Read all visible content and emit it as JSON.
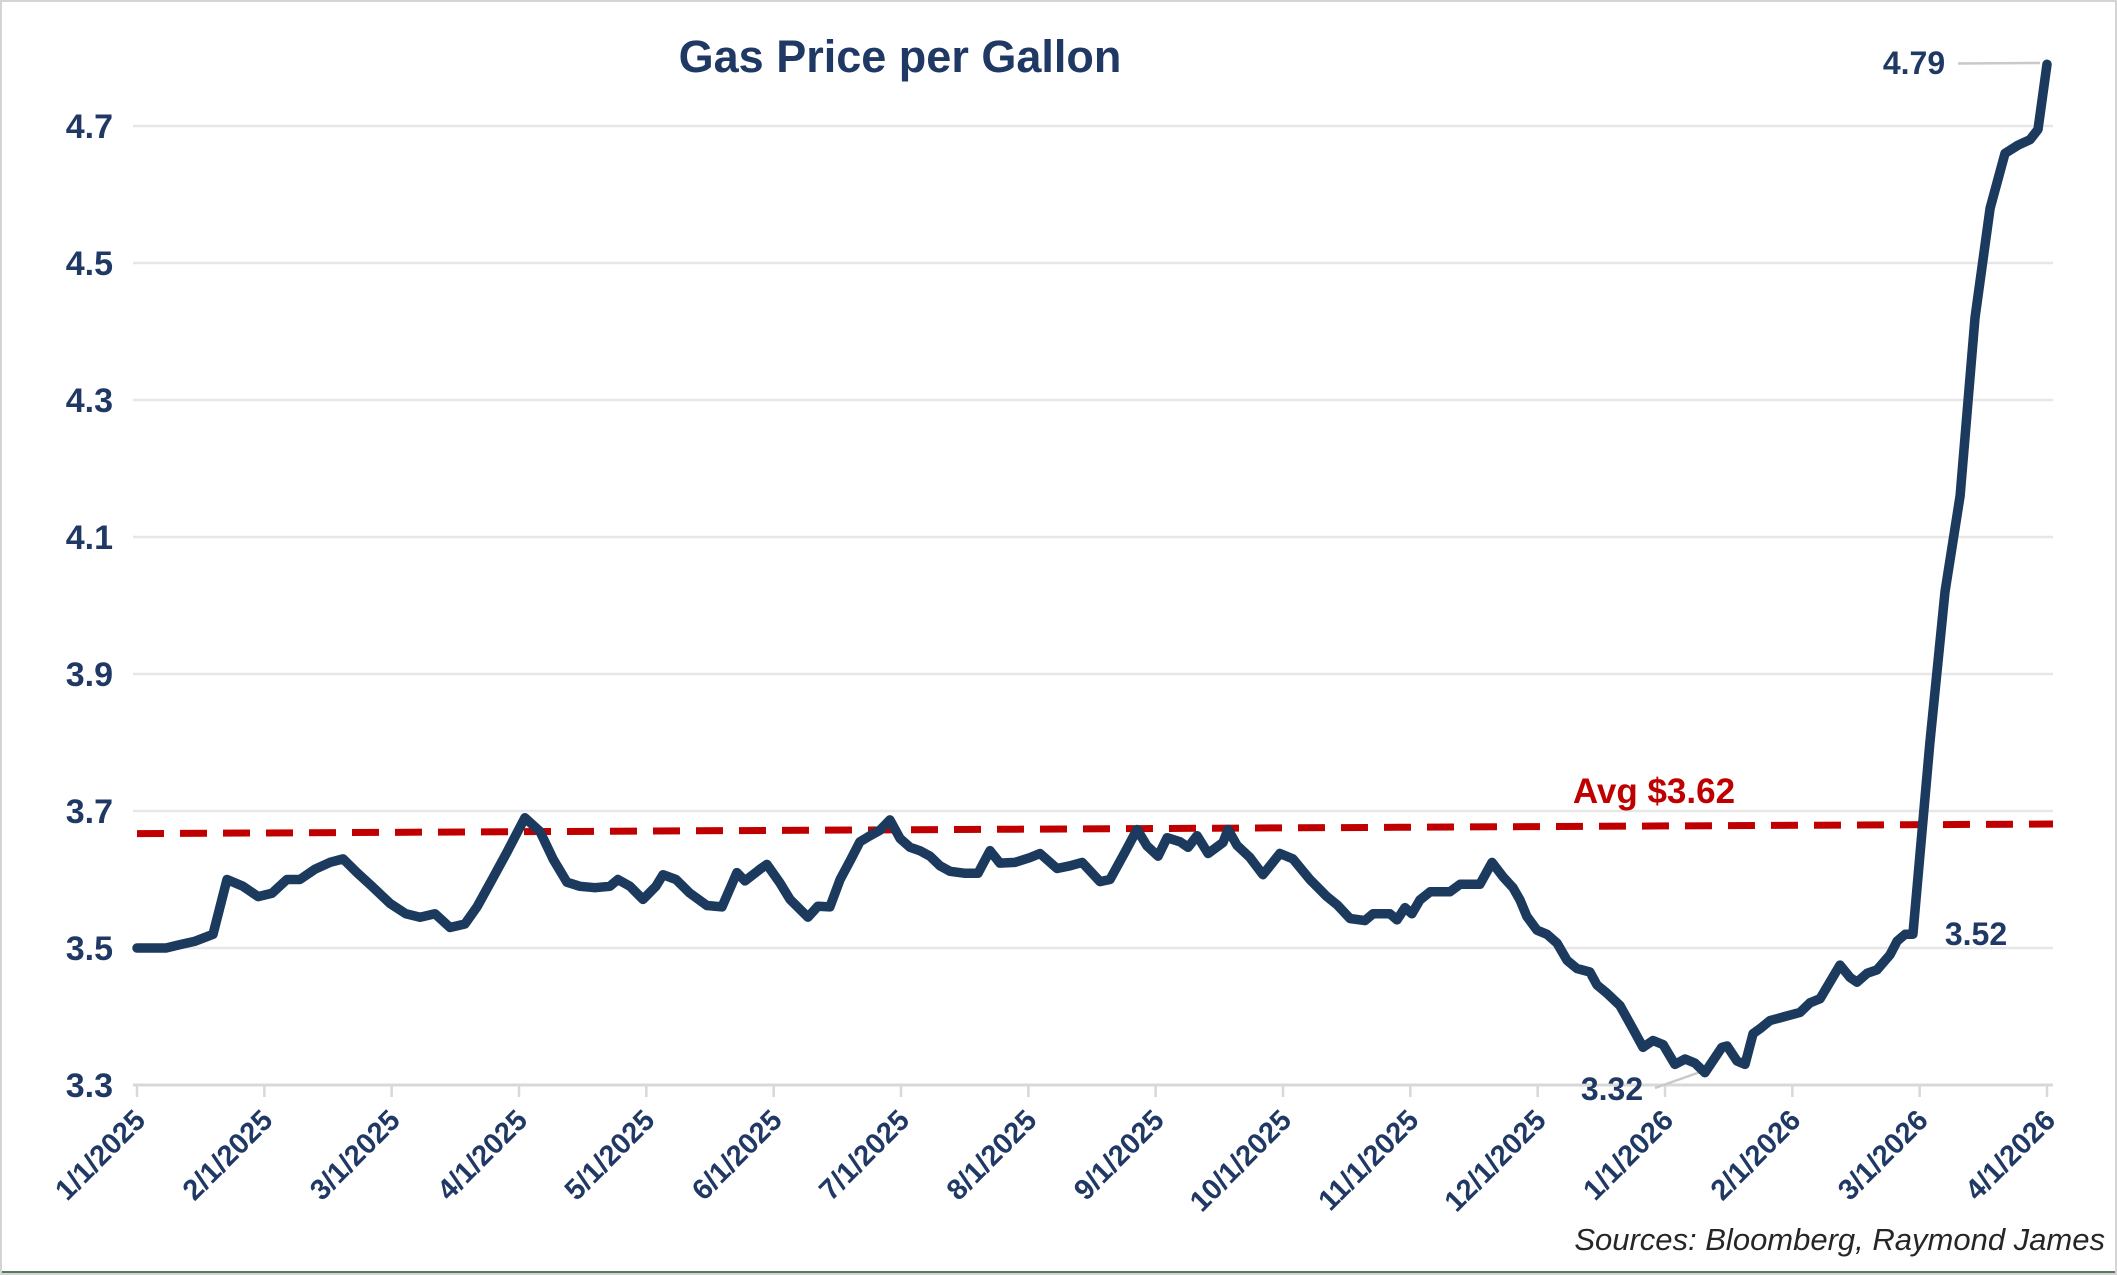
{
  "colors": {
    "line_navy": "#1c3a5e",
    "text_navy": "#1f3864",
    "avg_red": "#c00000",
    "gridline_gray": "#e7e7e7",
    "axis_gray": "#d8d8d8",
    "leader_gray": "#c9c9c9",
    "bottom_edge_green": "#567a60"
  },
  "chart_data": {
    "type": "line",
    "title": "Gas Price per Gallon",
    "source": "Sources: Bloomberg, Raymond James",
    "grid": true,
    "legend_position": "none",
    "xlabel": "",
    "ylabel": "",
    "ylim": [
      3.3,
      4.85
    ],
    "y_ticks": [
      "3.3",
      "3.5",
      "3.7",
      "3.9",
      "4.1",
      "4.3",
      "4.5",
      "4.7"
    ],
    "x_labels": [
      "1/1/2025",
      "2/1/2025",
      "3/1/2025",
      "4/1/2025",
      "5/1/2025",
      "6/1/2025",
      "7/1/2025",
      "8/1/2025",
      "9/1/2025",
      "10/1/2025",
      "11/1/2025",
      "12/1/2025",
      "1/1/2026",
      "2/1/2026",
      "3/1/2026",
      "4/1/2026"
    ],
    "avg_line": {
      "label": "Avg $3.62",
      "value": 3.62,
      "draw_start_value": 3.667,
      "draw_end_value": 3.681,
      "style": "dashed"
    },
    "annotations": [
      {
        "label": "4.79",
        "value": 4.79,
        "note": "peak at end of series"
      },
      {
        "label": "3.52",
        "value": 3.52,
        "note": "level before final spike"
      },
      {
        "label": "3.32",
        "value": 3.32,
        "note": "low point January 2026"
      }
    ],
    "series": [
      {
        "name": "Gas price per gallon (USD)",
        "x_axis": "time fraction from 1/1/2025 (0.0) to 4/1/2026 (1.0)",
        "points": [
          [
            0.0,
            3.5
          ],
          [
            0.0152,
            3.5
          ],
          [
            0.0225,
            3.505
          ],
          [
            0.0304,
            3.51
          ],
          [
            0.0398,
            3.52
          ],
          [
            0.0471,
            3.6
          ],
          [
            0.0555,
            3.59
          ],
          [
            0.0634,
            3.575
          ],
          [
            0.0707,
            3.58
          ],
          [
            0.0785,
            3.6
          ],
          [
            0.0853,
            3.6
          ],
          [
            0.0932,
            3.615
          ],
          [
            0.101,
            3.625
          ],
          [
            0.1079,
            3.63
          ],
          [
            0.1152,
            3.61
          ],
          [
            0.123,
            3.59
          ],
          [
            0.1325,
            3.565
          ],
          [
            0.1408,
            3.55
          ],
          [
            0.1482,
            3.545
          ],
          [
            0.156,
            3.55
          ],
          [
            0.1639,
            3.53
          ],
          [
            0.1717,
            3.535
          ],
          [
            0.178,
            3.56
          ],
          [
            0.1859,
            3.6
          ],
          [
            0.1937,
            3.64
          ],
          [
            0.2031,
            3.69
          ],
          [
            0.211,
            3.67
          ],
          [
            0.2178,
            3.63
          ],
          [
            0.2251,
            3.596
          ],
          [
            0.2319,
            3.59
          ],
          [
            0.2398,
            3.588
          ],
          [
            0.2476,
            3.59
          ],
          [
            0.2518,
            3.6
          ],
          [
            0.2581,
            3.59
          ],
          [
            0.2649,
            3.571
          ],
          [
            0.2717,
            3.59
          ],
          [
            0.2754,
            3.607
          ],
          [
            0.2822,
            3.6
          ],
          [
            0.2895,
            3.58
          ],
          [
            0.2984,
            3.562
          ],
          [
            0.3063,
            3.56
          ],
          [
            0.3141,
            3.61
          ],
          [
            0.3183,
            3.598
          ],
          [
            0.3262,
            3.615
          ],
          [
            0.3298,
            3.622
          ],
          [
            0.3366,
            3.595
          ],
          [
            0.3419,
            3.571
          ],
          [
            0.3513,
            3.545
          ],
          [
            0.3565,
            3.561
          ],
          [
            0.3628,
            3.56
          ],
          [
            0.3681,
            3.6
          ],
          [
            0.3733,
            3.627
          ],
          [
            0.3785,
            3.655
          ],
          [
            0.3838,
            3.664
          ],
          [
            0.389,
            3.672
          ],
          [
            0.3942,
            3.687
          ],
          [
            0.3995,
            3.66
          ],
          [
            0.4047,
            3.647
          ],
          [
            0.4099,
            3.642
          ],
          [
            0.4152,
            3.634
          ],
          [
            0.4204,
            3.62
          ],
          [
            0.4257,
            3.612
          ],
          [
            0.4335,
            3.609
          ],
          [
            0.4403,
            3.609
          ],
          [
            0.4466,
            3.642
          ],
          [
            0.4518,
            3.624
          ],
          [
            0.4597,
            3.625
          ],
          [
            0.4675,
            3.632
          ],
          [
            0.4728,
            3.638
          ],
          [
            0.4817,
            3.616
          ],
          [
            0.4885,
            3.62
          ],
          [
            0.4948,
            3.625
          ],
          [
            0.5042,
            3.597
          ],
          [
            0.5094,
            3.6
          ],
          [
            0.5173,
            3.64
          ],
          [
            0.5236,
            3.673
          ],
          [
            0.5288,
            3.649
          ],
          [
            0.5346,
            3.634
          ],
          [
            0.5393,
            3.661
          ],
          [
            0.5461,
            3.655
          ],
          [
            0.5503,
            3.647
          ],
          [
            0.555,
            3.664
          ],
          [
            0.5608,
            3.638
          ],
          [
            0.5686,
            3.654
          ],
          [
            0.5712,
            3.673
          ],
          [
            0.5759,
            3.65
          ],
          [
            0.5827,
            3.632
          ],
          [
            0.5895,
            3.607
          ],
          [
            0.5984,
            3.638
          ],
          [
            0.6052,
            3.63
          ],
          [
            0.6141,
            3.6
          ],
          [
            0.623,
            3.575
          ],
          [
            0.6283,
            3.563
          ],
          [
            0.6351,
            3.543
          ],
          [
            0.6429,
            3.54
          ],
          [
            0.6471,
            3.55
          ],
          [
            0.656,
            3.55
          ],
          [
            0.6597,
            3.541
          ],
          [
            0.6639,
            3.559
          ],
          [
            0.6675,
            3.55
          ],
          [
            0.6717,
            3.57
          ],
          [
            0.677,
            3.582
          ],
          [
            0.6874,
            3.582
          ],
          [
            0.6927,
            3.593
          ],
          [
            0.7031,
            3.593
          ],
          [
            0.7094,
            3.625
          ],
          [
            0.7152,
            3.604
          ],
          [
            0.7204,
            3.588
          ],
          [
            0.7241,
            3.57
          ],
          [
            0.7277,
            3.546
          ],
          [
            0.733,
            3.526
          ],
          [
            0.7382,
            3.52
          ],
          [
            0.7435,
            3.507
          ],
          [
            0.7487,
            3.482
          ],
          [
            0.7539,
            3.47
          ],
          [
            0.7607,
            3.465
          ],
          [
            0.7644,
            3.446
          ],
          [
            0.7696,
            3.434
          ],
          [
            0.7764,
            3.416
          ],
          [
            0.7832,
            3.382
          ],
          [
            0.7885,
            3.355
          ],
          [
            0.7937,
            3.365
          ],
          [
            0.799,
            3.359
          ],
          [
            0.8052,
            3.33
          ],
          [
            0.8105,
            3.338
          ],
          [
            0.8157,
            3.332
          ],
          [
            0.8209,
            3.318
          ],
          [
            0.8298,
            3.355
          ],
          [
            0.8325,
            3.357
          ],
          [
            0.8377,
            3.335
          ],
          [
            0.8419,
            3.33
          ],
          [
            0.8461,
            3.375
          ],
          [
            0.8497,
            3.382
          ],
          [
            0.855,
            3.394
          ],
          [
            0.8628,
            3.4
          ],
          [
            0.8707,
            3.406
          ],
          [
            0.8759,
            3.42
          ],
          [
            0.8812,
            3.426
          ],
          [
            0.8916,
            3.475
          ],
          [
            0.8969,
            3.457
          ],
          [
            0.9005,
            3.45
          ],
          [
            0.9058,
            3.463
          ],
          [
            0.911,
            3.468
          ],
          [
            0.9178,
            3.49
          ],
          [
            0.9215,
            3.51
          ],
          [
            0.9257,
            3.52
          ],
          [
            0.9298,
            3.52
          ],
          [
            0.9387,
            3.8
          ],
          [
            0.9466,
            4.02
          ],
          [
            0.9545,
            4.16
          ],
          [
            0.9623,
            4.42
          ],
          [
            0.9702,
            4.58
          ],
          [
            0.978,
            4.66
          ],
          [
            0.9848,
            4.672
          ],
          [
            0.9911,
            4.68
          ],
          [
            0.9953,
            4.695
          ],
          [
            1.0,
            4.79
          ]
        ]
      }
    ]
  }
}
